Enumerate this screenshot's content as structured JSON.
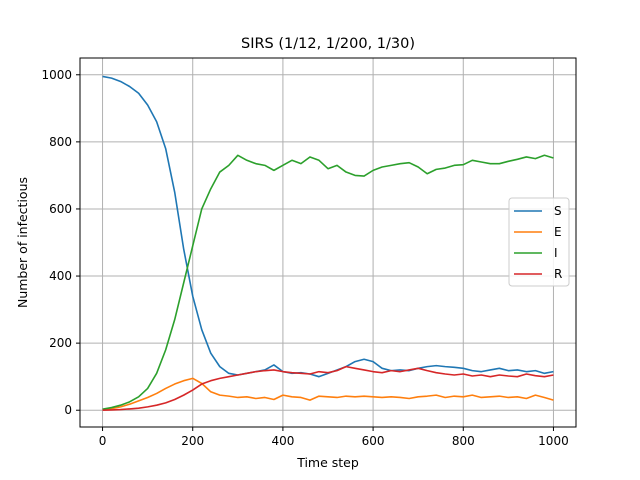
{
  "chart_data": {
    "type": "line",
    "title": "SIRS (1/12, 1/200, 1/30)",
    "xlabel": "Time step",
    "ylabel": "Number of infectious",
    "xlim": [
      -50,
      1050
    ],
    "ylim": [
      -50,
      1050
    ],
    "xticks": [
      0,
      200,
      400,
      600,
      800,
      1000
    ],
    "yticks": [
      0,
      200,
      400,
      600,
      800,
      1000
    ],
    "grid": true,
    "legend_position": "center-right",
    "series": [
      {
        "name": "S",
        "color": "#1f77b4",
        "points": [
          [
            0,
            995
          ],
          [
            20,
            990
          ],
          [
            40,
            980
          ],
          [
            60,
            965
          ],
          [
            80,
            945
          ],
          [
            100,
            910
          ],
          [
            120,
            860
          ],
          [
            140,
            780
          ],
          [
            160,
            650
          ],
          [
            180,
            480
          ],
          [
            200,
            340
          ],
          [
            220,
            240
          ],
          [
            240,
            170
          ],
          [
            260,
            130
          ],
          [
            280,
            110
          ],
          [
            300,
            105
          ],
          [
            320,
            110
          ],
          [
            340,
            115
          ],
          [
            360,
            120
          ],
          [
            380,
            135
          ],
          [
            400,
            115
          ],
          [
            420,
            110
          ],
          [
            440,
            112
          ],
          [
            460,
            108
          ],
          [
            480,
            100
          ],
          [
            500,
            110
          ],
          [
            520,
            120
          ],
          [
            540,
            130
          ],
          [
            560,
            145
          ],
          [
            580,
            152
          ],
          [
            600,
            145
          ],
          [
            620,
            125
          ],
          [
            640,
            118
          ],
          [
            660,
            120
          ],
          [
            680,
            118
          ],
          [
            700,
            125
          ],
          [
            720,
            130
          ],
          [
            740,
            133
          ],
          [
            760,
            130
          ],
          [
            780,
            128
          ],
          [
            800,
            125
          ],
          [
            820,
            118
          ],
          [
            840,
            115
          ],
          [
            860,
            120
          ],
          [
            880,
            125
          ],
          [
            900,
            118
          ],
          [
            920,
            120
          ],
          [
            940,
            115
          ],
          [
            960,
            118
          ],
          [
            980,
            110
          ],
          [
            1000,
            115
          ]
        ]
      },
      {
        "name": "E",
        "color": "#ff7f0e",
        "points": [
          [
            0,
            2
          ],
          [
            20,
            5
          ],
          [
            40,
            10
          ],
          [
            60,
            18
          ],
          [
            80,
            28
          ],
          [
            100,
            38
          ],
          [
            120,
            50
          ],
          [
            140,
            65
          ],
          [
            160,
            78
          ],
          [
            180,
            88
          ],
          [
            200,
            95
          ],
          [
            220,
            80
          ],
          [
            240,
            55
          ],
          [
            260,
            45
          ],
          [
            280,
            42
          ],
          [
            300,
            38
          ],
          [
            320,
            40
          ],
          [
            340,
            35
          ],
          [
            360,
            38
          ],
          [
            380,
            32
          ],
          [
            400,
            45
          ],
          [
            420,
            40
          ],
          [
            440,
            38
          ],
          [
            460,
            30
          ],
          [
            480,
            42
          ],
          [
            500,
            40
          ],
          [
            520,
            38
          ],
          [
            540,
            42
          ],
          [
            560,
            40
          ],
          [
            580,
            42
          ],
          [
            600,
            40
          ],
          [
            620,
            38
          ],
          [
            640,
            40
          ],
          [
            660,
            38
          ],
          [
            680,
            35
          ],
          [
            700,
            40
          ],
          [
            720,
            42
          ],
          [
            740,
            45
          ],
          [
            760,
            38
          ],
          [
            780,
            42
          ],
          [
            800,
            40
          ],
          [
            820,
            45
          ],
          [
            840,
            38
          ],
          [
            860,
            40
          ],
          [
            880,
            42
          ],
          [
            900,
            38
          ],
          [
            920,
            40
          ],
          [
            940,
            35
          ],
          [
            960,
            45
          ],
          [
            980,
            38
          ],
          [
            1000,
            30
          ]
        ]
      },
      {
        "name": "I",
        "color": "#2ca02c",
        "points": [
          [
            0,
            3
          ],
          [
            20,
            8
          ],
          [
            40,
            15
          ],
          [
            60,
            25
          ],
          [
            80,
            40
          ],
          [
            100,
            65
          ],
          [
            120,
            110
          ],
          [
            140,
            180
          ],
          [
            160,
            270
          ],
          [
            180,
            380
          ],
          [
            200,
            490
          ],
          [
            220,
            600
          ],
          [
            240,
            660
          ],
          [
            260,
            710
          ],
          [
            280,
            730
          ],
          [
            300,
            760
          ],
          [
            320,
            745
          ],
          [
            340,
            735
          ],
          [
            360,
            730
          ],
          [
            380,
            715
          ],
          [
            400,
            730
          ],
          [
            420,
            745
          ],
          [
            440,
            735
          ],
          [
            460,
            755
          ],
          [
            480,
            745
          ],
          [
            500,
            720
          ],
          [
            520,
            730
          ],
          [
            540,
            710
          ],
          [
            560,
            700
          ],
          [
            580,
            698
          ],
          [
            600,
            715
          ],
          [
            620,
            725
          ],
          [
            640,
            730
          ],
          [
            660,
            735
          ],
          [
            680,
            738
          ],
          [
            700,
            725
          ],
          [
            720,
            705
          ],
          [
            740,
            718
          ],
          [
            760,
            722
          ],
          [
            780,
            730
          ],
          [
            800,
            732
          ],
          [
            820,
            745
          ],
          [
            840,
            740
          ],
          [
            860,
            735
          ],
          [
            880,
            735
          ],
          [
            900,
            742
          ],
          [
            920,
            748
          ],
          [
            940,
            755
          ],
          [
            960,
            750
          ],
          [
            980,
            760
          ],
          [
            1000,
            752
          ]
        ]
      },
      {
        "name": "R",
        "color": "#d62728",
        "points": [
          [
            0,
            0
          ],
          [
            20,
            1
          ],
          [
            40,
            2
          ],
          [
            60,
            4
          ],
          [
            80,
            6
          ],
          [
            100,
            10
          ],
          [
            120,
            15
          ],
          [
            140,
            22
          ],
          [
            160,
            32
          ],
          [
            180,
            45
          ],
          [
            200,
            60
          ],
          [
            220,
            78
          ],
          [
            240,
            88
          ],
          [
            260,
            95
          ],
          [
            280,
            100
          ],
          [
            300,
            105
          ],
          [
            320,
            110
          ],
          [
            340,
            115
          ],
          [
            360,
            118
          ],
          [
            380,
            120
          ],
          [
            400,
            115
          ],
          [
            420,
            112
          ],
          [
            440,
            110
          ],
          [
            460,
            108
          ],
          [
            480,
            115
          ],
          [
            500,
            112
          ],
          [
            520,
            118
          ],
          [
            540,
            130
          ],
          [
            560,
            125
          ],
          [
            580,
            120
          ],
          [
            600,
            115
          ],
          [
            620,
            112
          ],
          [
            640,
            118
          ],
          [
            660,
            115
          ],
          [
            680,
            120
          ],
          [
            700,
            125
          ],
          [
            720,
            118
          ],
          [
            740,
            112
          ],
          [
            760,
            108
          ],
          [
            780,
            105
          ],
          [
            800,
            108
          ],
          [
            820,
            102
          ],
          [
            840,
            105
          ],
          [
            860,
            100
          ],
          [
            880,
            105
          ],
          [
            900,
            102
          ],
          [
            920,
            100
          ],
          [
            940,
            108
          ],
          [
            960,
            103
          ],
          [
            980,
            100
          ],
          [
            1000,
            105
          ]
        ]
      }
    ]
  }
}
